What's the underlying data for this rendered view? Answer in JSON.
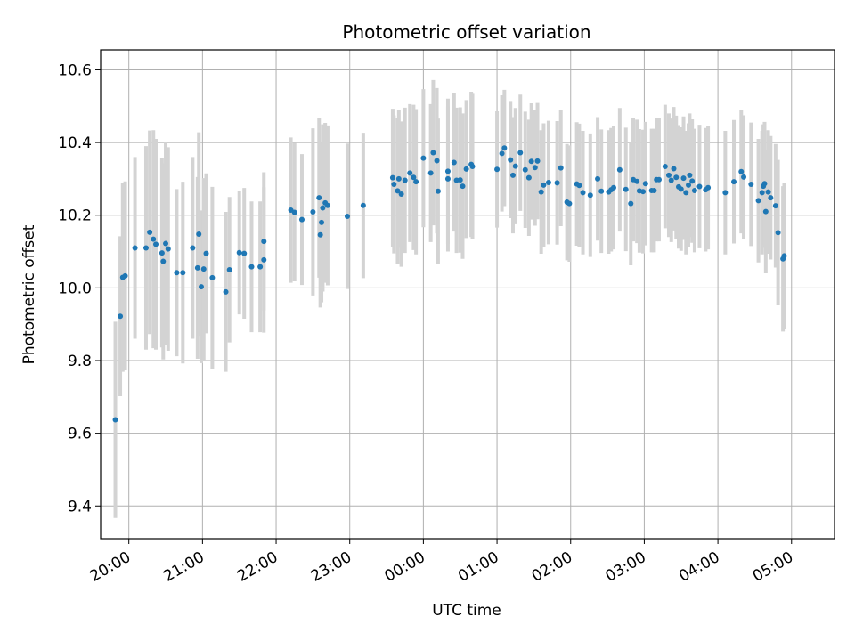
{
  "chart_data": {
    "type": "scatter",
    "title": "Photometric offset variation",
    "xlabel": "UTC time",
    "ylabel": "Photometric offset",
    "xlim": [
      "19:37",
      "05:35"
    ],
    "ylim": [
      9.31,
      10.655
    ],
    "grid": true,
    "colors": {
      "points": "#1f77b4",
      "errorbars": "#d3d3d3",
      "grid": "#b0b0b0"
    },
    "x_ticks": [
      "20:00",
      "21:00",
      "22:00",
      "23:00",
      "00:00",
      "01:00",
      "02:00",
      "03:00",
      "04:00",
      "05:00"
    ],
    "y_ticks": [
      "9.4",
      "9.6",
      "9.8",
      "10.0",
      "10.2",
      "10.4",
      "10.6"
    ],
    "points": [
      {
        "x": "19:49",
        "y": 9.637,
        "err": 0.27
      },
      {
        "x": "19:53",
        "y": 9.922,
        "err": 0.22
      },
      {
        "x": "19:55",
        "y": 10.029,
        "err": 0.26
      },
      {
        "x": "19:57",
        "y": 10.033,
        "err": 0.26
      },
      {
        "x": "20:05",
        "y": 10.11,
        "err": 0.25
      },
      {
        "x": "20:14",
        "y": 10.11,
        "err": 0.28
      },
      {
        "x": "20:17",
        "y": 10.153,
        "err": 0.28
      },
      {
        "x": "20:20",
        "y": 10.134,
        "err": 0.3
      },
      {
        "x": "20:22",
        "y": 10.12,
        "err": 0.29
      },
      {
        "x": "20:27",
        "y": 10.096,
        "err": 0.26
      },
      {
        "x": "20:28",
        "y": 10.073,
        "err": 0.27
      },
      {
        "x": "20:30",
        "y": 10.122,
        "err": 0.28
      },
      {
        "x": "20:32",
        "y": 10.107,
        "err": 0.28
      },
      {
        "x": "20:39",
        "y": 10.042,
        "err": 0.23
      },
      {
        "x": "20:44",
        "y": 10.042,
        "err": 0.25
      },
      {
        "x": "20:52",
        "y": 10.11,
        "err": 0.25
      },
      {
        "x": "20:56",
        "y": 10.055,
        "err": 0.25
      },
      {
        "x": "20:57",
        "y": 10.148,
        "err": 0.28
      },
      {
        "x": "20:59",
        "y": 10.003,
        "err": 0.21
      },
      {
        "x": "21:01",
        "y": 10.052,
        "err": 0.25
      },
      {
        "x": "21:03",
        "y": 10.095,
        "err": 0.22
      },
      {
        "x": "21:08",
        "y": 10.028,
        "err": 0.25
      },
      {
        "x": "21:19",
        "y": 9.989,
        "err": 0.22
      },
      {
        "x": "21:22",
        "y": 10.05,
        "err": 0.2
      },
      {
        "x": "21:30",
        "y": 10.097,
        "err": 0.17
      },
      {
        "x": "21:34",
        "y": 10.095,
        "err": 0.18
      },
      {
        "x": "21:40",
        "y": 10.058,
        "err": 0.18
      },
      {
        "x": "21:47",
        "y": 10.058,
        "err": 0.18
      },
      {
        "x": "21:50",
        "y": 10.077,
        "err": 0.2
      },
      {
        "x": "21:50",
        "y": 10.128,
        "err": 0.19
      },
      {
        "x": "22:12",
        "y": 10.214,
        "err": 0.2
      },
      {
        "x": "22:15",
        "y": 10.208,
        "err": 0.19
      },
      {
        "x": "22:21",
        "y": 10.188,
        "err": 0.18
      },
      {
        "x": "22:30",
        "y": 10.209,
        "err": 0.23
      },
      {
        "x": "22:35",
        "y": 10.248,
        "err": 0.22
      },
      {
        "x": "22:36",
        "y": 10.146,
        "err": 0.2
      },
      {
        "x": "22:37",
        "y": 10.18,
        "err": 0.22
      },
      {
        "x": "22:38",
        "y": 10.22,
        "err": 0.23
      },
      {
        "x": "22:40",
        "y": 10.234,
        "err": 0.22
      },
      {
        "x": "22:42",
        "y": 10.227,
        "err": 0.22
      },
      {
        "x": "22:58",
        "y": 10.197,
        "err": 0.2
      },
      {
        "x": "23:11",
        "y": 10.227,
        "err": 0.2
      },
      {
        "x": "23:35",
        "y": 10.303,
        "err": 0.19
      },
      {
        "x": "23:36",
        "y": 10.285,
        "err": 0.19
      },
      {
        "x": "23:39",
        "y": 10.267,
        "err": 0.2
      },
      {
        "x": "23:40",
        "y": 10.3,
        "err": 0.19
      },
      {
        "x": "23:42",
        "y": 10.258,
        "err": 0.2
      },
      {
        "x": "23:45",
        "y": 10.296,
        "err": 0.2
      },
      {
        "x": "23:49",
        "y": 10.316,
        "err": 0.19
      },
      {
        "x": "23:52",
        "y": 10.304,
        "err": 0.2
      },
      {
        "x": "23:54",
        "y": 10.292,
        "err": 0.2
      },
      {
        "x": "00:00",
        "y": 10.357,
        "err": 0.19
      },
      {
        "x": "00:06",
        "y": 10.316,
        "err": 0.19
      },
      {
        "x": "00:08",
        "y": 10.372,
        "err": 0.2
      },
      {
        "x": "00:11",
        "y": 10.35,
        "err": 0.2
      },
      {
        "x": "00:12",
        "y": 10.266,
        "err": 0.2
      },
      {
        "x": "00:20",
        "y": 10.321,
        "err": 0.2
      },
      {
        "x": "00:20",
        "y": 10.3,
        "err": 0.2
      },
      {
        "x": "00:25",
        "y": 10.345,
        "err": 0.19
      },
      {
        "x": "00:27",
        "y": 10.296,
        "err": 0.2
      },
      {
        "x": "00:30",
        "y": 10.297,
        "err": 0.2
      },
      {
        "x": "00:32",
        "y": 10.28,
        "err": 0.2
      },
      {
        "x": "00:35",
        "y": 10.327,
        "err": 0.19
      },
      {
        "x": "00:39",
        "y": 10.34,
        "err": 0.2
      },
      {
        "x": "00:40",
        "y": 10.334,
        "err": 0.2
      },
      {
        "x": "01:00",
        "y": 10.326,
        "err": 0.16
      },
      {
        "x": "01:04",
        "y": 10.37,
        "err": 0.16
      },
      {
        "x": "01:06",
        "y": 10.385,
        "err": 0.16
      },
      {
        "x": "01:11",
        "y": 10.352,
        "err": 0.16
      },
      {
        "x": "01:13",
        "y": 10.31,
        "err": 0.16
      },
      {
        "x": "01:15",
        "y": 10.335,
        "err": 0.16
      },
      {
        "x": "01:19",
        "y": 10.372,
        "err": 0.16
      },
      {
        "x": "01:23",
        "y": 10.325,
        "err": 0.16
      },
      {
        "x": "01:26",
        "y": 10.303,
        "err": 0.16
      },
      {
        "x": "01:28",
        "y": 10.348,
        "err": 0.16
      },
      {
        "x": "01:31",
        "y": 10.331,
        "err": 0.16
      },
      {
        "x": "01:33",
        "y": 10.349,
        "err": 0.16
      },
      {
        "x": "01:36",
        "y": 10.264,
        "err": 0.17
      },
      {
        "x": "01:38",
        "y": 10.283,
        "err": 0.17
      },
      {
        "x": "01:42",
        "y": 10.29,
        "err": 0.17
      },
      {
        "x": "01:49",
        "y": 10.289,
        "err": 0.17
      },
      {
        "x": "01:52",
        "y": 10.33,
        "err": 0.16
      },
      {
        "x": "01:57",
        "y": 10.236,
        "err": 0.16
      },
      {
        "x": "01:59",
        "y": 10.232,
        "err": 0.16
      },
      {
        "x": "02:05",
        "y": 10.286,
        "err": 0.17
      },
      {
        "x": "02:07",
        "y": 10.282,
        "err": 0.17
      },
      {
        "x": "02:10",
        "y": 10.262,
        "err": 0.17
      },
      {
        "x": "02:16",
        "y": 10.255,
        "err": 0.17
      },
      {
        "x": "02:22",
        "y": 10.3,
        "err": 0.17
      },
      {
        "x": "02:25",
        "y": 10.266,
        "err": 0.17
      },
      {
        "x": "02:31",
        "y": 10.264,
        "err": 0.17
      },
      {
        "x": "02:33",
        "y": 10.27,
        "err": 0.17
      },
      {
        "x": "02:35",
        "y": 10.276,
        "err": 0.17
      },
      {
        "x": "02:40",
        "y": 10.325,
        "err": 0.17
      },
      {
        "x": "02:45",
        "y": 10.271,
        "err": 0.17
      },
      {
        "x": "02:49",
        "y": 10.232,
        "err": 0.17
      },
      {
        "x": "02:51",
        "y": 10.298,
        "err": 0.17
      },
      {
        "x": "02:54",
        "y": 10.293,
        "err": 0.17
      },
      {
        "x": "02:56",
        "y": 10.267,
        "err": 0.17
      },
      {
        "x": "02:59",
        "y": 10.265,
        "err": 0.17
      },
      {
        "x": "03:01",
        "y": 10.287,
        "err": 0.17
      },
      {
        "x": "03:06",
        "y": 10.268,
        "err": 0.17
      },
      {
        "x": "03:08",
        "y": 10.268,
        "err": 0.17
      },
      {
        "x": "03:10",
        "y": 10.298,
        "err": 0.17
      },
      {
        "x": "03:12",
        "y": 10.298,
        "err": 0.17
      },
      {
        "x": "03:17",
        "y": 10.334,
        "err": 0.17
      },
      {
        "x": "03:20",
        "y": 10.31,
        "err": 0.17
      },
      {
        "x": "03:22",
        "y": 10.296,
        "err": 0.17
      },
      {
        "x": "03:24",
        "y": 10.328,
        "err": 0.17
      },
      {
        "x": "03:26",
        "y": 10.304,
        "err": 0.17
      },
      {
        "x": "03:28",
        "y": 10.278,
        "err": 0.17
      },
      {
        "x": "03:30",
        "y": 10.272,
        "err": 0.17
      },
      {
        "x": "03:32",
        "y": 10.302,
        "err": 0.17
      },
      {
        "x": "03:34",
        "y": 10.262,
        "err": 0.17
      },
      {
        "x": "03:36",
        "y": 10.283,
        "err": 0.17
      },
      {
        "x": "03:37",
        "y": 10.31,
        "err": 0.17
      },
      {
        "x": "03:39",
        "y": 10.294,
        "err": 0.17
      },
      {
        "x": "03:41",
        "y": 10.268,
        "err": 0.17
      },
      {
        "x": "03:45",
        "y": 10.279,
        "err": 0.17
      },
      {
        "x": "03:50",
        "y": 10.27,
        "err": 0.17
      },
      {
        "x": "03:52",
        "y": 10.276,
        "err": 0.17
      },
      {
        "x": "04:06",
        "y": 10.262,
        "err": 0.17
      },
      {
        "x": "04:13",
        "y": 10.292,
        "err": 0.17
      },
      {
        "x": "04:19",
        "y": 10.32,
        "err": 0.17
      },
      {
        "x": "04:21",
        "y": 10.305,
        "err": 0.17
      },
      {
        "x": "04:27",
        "y": 10.285,
        "err": 0.17
      },
      {
        "x": "04:33",
        "y": 10.24,
        "err": 0.17
      },
      {
        "x": "04:36",
        "y": 10.262,
        "err": 0.17
      },
      {
        "x": "04:37",
        "y": 10.28,
        "err": 0.17
      },
      {
        "x": "04:38",
        "y": 10.287,
        "err": 0.17
      },
      {
        "x": "04:39",
        "y": 10.21,
        "err": 0.17
      },
      {
        "x": "04:41",
        "y": 10.264,
        "err": 0.17
      },
      {
        "x": "04:43",
        "y": 10.248,
        "err": 0.17
      },
      {
        "x": "04:47",
        "y": 10.226,
        "err": 0.17
      },
      {
        "x": "04:49",
        "y": 10.152,
        "err": 0.2
      },
      {
        "x": "04:53",
        "y": 10.08,
        "err": 0.2
      },
      {
        "x": "04:54",
        "y": 10.088,
        "err": 0.2
      }
    ]
  }
}
